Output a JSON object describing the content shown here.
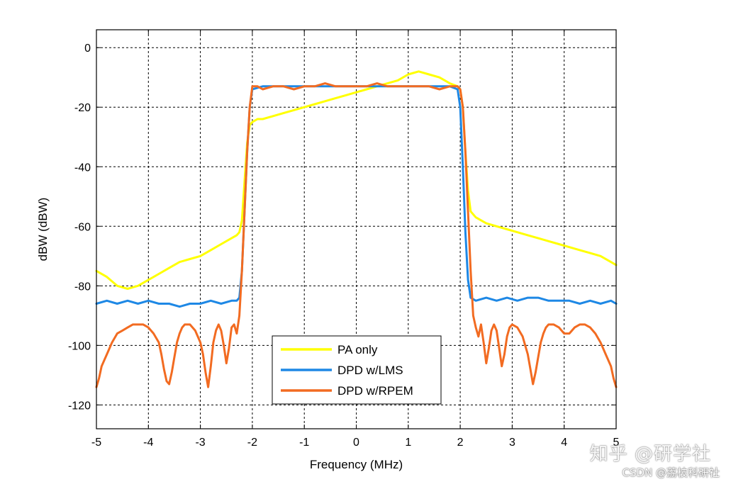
{
  "chart_data": {
    "type": "line",
    "title": "",
    "xlabel": "Frequency (MHz)",
    "ylabel": "dBW (dBW)",
    "xlim": [
      -5,
      5
    ],
    "ylim": [
      -128,
      6
    ],
    "xticks": [
      -5,
      -4,
      -3,
      -2,
      -1,
      0,
      1,
      2,
      3,
      4,
      5
    ],
    "yticks": [
      0,
      -20,
      -40,
      -60,
      -80,
      -100,
      -120
    ],
    "grid": true,
    "legend_position": "bottom-center",
    "series": [
      {
        "name": "PA only",
        "color": "#ffff00",
        "x": [
          -5,
          -4.8,
          -4.6,
          -4.4,
          -4.2,
          -4.0,
          -3.8,
          -3.6,
          -3.4,
          -3.2,
          -3.0,
          -2.8,
          -2.6,
          -2.4,
          -2.3,
          -2.25,
          -2.2,
          -2.15,
          -2.1,
          -2.05,
          -2.0,
          -1.9,
          -1.8,
          -1.6,
          -1.4,
          -1.2,
          -1.0,
          -0.8,
          -0.6,
          -0.4,
          -0.2,
          0.0,
          0.2,
          0.4,
          0.6,
          0.8,
          1.0,
          1.2,
          1.4,
          1.6,
          1.8,
          1.95,
          2.0,
          2.05,
          2.1,
          2.15,
          2.2,
          2.3,
          2.5,
          2.7,
          2.9,
          3.1,
          3.3,
          3.5,
          3.7,
          3.9,
          4.1,
          4.3,
          4.5,
          4.7,
          4.9,
          5.0
        ],
        "y": [
          -75,
          -77,
          -80,
          -81,
          -80,
          -78,
          -76,
          -74,
          -72,
          -71,
          -70,
          -68,
          -66,
          -64,
          -63,
          -62,
          -58,
          -45,
          -32,
          -26,
          -25,
          -24,
          -24,
          -23,
          -22,
          -21,
          -20,
          -19,
          -18,
          -17,
          -16,
          -15,
          -14,
          -13,
          -12,
          -11,
          -9,
          -8,
          -9,
          -10,
          -12,
          -13,
          -14,
          -20,
          -35,
          -48,
          -55,
          -57,
          -59,
          -60,
          -61,
          -62,
          -63,
          -64,
          -65,
          -66,
          -67,
          -68,
          -69,
          -70,
          -72,
          -73
        ]
      },
      {
        "name": "DPD w/LMS",
        "color": "#1e88e5",
        "x": [
          -5,
          -4.8,
          -4.6,
          -4.4,
          -4.2,
          -4.0,
          -3.8,
          -3.6,
          -3.4,
          -3.2,
          -3.0,
          -2.8,
          -2.6,
          -2.4,
          -2.3,
          -2.25,
          -2.2,
          -2.15,
          -2.1,
          -2.05,
          -2.0,
          -1.8,
          -1.5,
          -1.0,
          -0.5,
          0.0,
          0.5,
          1.0,
          1.5,
          1.8,
          1.95,
          2.0,
          2.05,
          2.1,
          2.15,
          2.2,
          2.3,
          2.5,
          2.7,
          2.9,
          3.1,
          3.3,
          3.5,
          3.7,
          3.9,
          4.1,
          4.3,
          4.5,
          4.7,
          4.9,
          5.0
        ],
        "y": [
          -86,
          -85,
          -86,
          -85,
          -86,
          -85,
          -86,
          -86,
          -87,
          -86,
          -86,
          -85,
          -86,
          -85,
          -85,
          -84,
          -75,
          -55,
          -35,
          -20,
          -14,
          -13,
          -13,
          -13,
          -13,
          -13,
          -13,
          -13,
          -13,
          -13,
          -14,
          -20,
          -40,
          -62,
          -78,
          -84,
          -85,
          -84,
          -85,
          -84,
          -85,
          -84,
          -84,
          -85,
          -85,
          -85,
          -86,
          -85,
          -86,
          -85,
          -86
        ]
      },
      {
        "name": "DPD w/RPEM",
        "color": "#f26b21",
        "x": [
          -5,
          -4.95,
          -4.9,
          -4.8,
          -4.7,
          -4.6,
          -4.5,
          -4.4,
          -4.3,
          -4.2,
          -4.1,
          -4.0,
          -3.9,
          -3.8,
          -3.75,
          -3.7,
          -3.65,
          -3.6,
          -3.55,
          -3.5,
          -3.45,
          -3.4,
          -3.35,
          -3.3,
          -3.2,
          -3.1,
          -3.0,
          -2.95,
          -2.9,
          -2.85,
          -2.8,
          -2.75,
          -2.7,
          -2.65,
          -2.6,
          -2.55,
          -2.5,
          -2.45,
          -2.4,
          -2.35,
          -2.3,
          -2.25,
          -2.2,
          -2.15,
          -2.1,
          -2.05,
          -2.0,
          -1.9,
          -1.8,
          -1.6,
          -1.4,
          -1.2,
          -1.0,
          -0.8,
          -0.6,
          -0.4,
          -0.2,
          0.0,
          0.2,
          0.4,
          0.6,
          0.8,
          1.0,
          1.2,
          1.4,
          1.6,
          1.8,
          1.95,
          2.0,
          2.05,
          2.1,
          2.15,
          2.2,
          2.25,
          2.3,
          2.35,
          2.4,
          2.45,
          2.5,
          2.55,
          2.6,
          2.65,
          2.7,
          2.75,
          2.8,
          2.85,
          2.9,
          2.95,
          3.0,
          3.1,
          3.2,
          3.3,
          3.35,
          3.4,
          3.45,
          3.5,
          3.55,
          3.6,
          3.65,
          3.7,
          3.75,
          3.8,
          3.9,
          4.0,
          4.1,
          4.2,
          4.3,
          4.4,
          4.5,
          4.6,
          4.7,
          4.8,
          4.9,
          4.95,
          5.0
        ],
        "y": [
          -114,
          -111,
          -107,
          -103,
          -99,
          -96,
          -95,
          -94,
          -93,
          -93,
          -93,
          -94,
          -96,
          -99,
          -103,
          -108,
          -112,
          -113,
          -109,
          -104,
          -99,
          -96,
          -94,
          -93,
          -93,
          -95,
          -99,
          -103,
          -109,
          -114,
          -107,
          -99,
          -95,
          -93,
          -95,
          -100,
          -106,
          -101,
          -94,
          -93,
          -96,
          -90,
          -75,
          -55,
          -35,
          -20,
          -13,
          -13,
          -14,
          -13,
          -13,
          -14,
          -13,
          -13,
          -12,
          -13,
          -13,
          -13,
          -13,
          -12,
          -13,
          -13,
          -13,
          -13,
          -13,
          -14,
          -13,
          -13,
          -14,
          -20,
          -35,
          -55,
          -75,
          -90,
          -94,
          -97,
          -93,
          -99,
          -106,
          -101,
          -95,
          -93,
          -95,
          -101,
          -107,
          -103,
          -97,
          -94,
          -93,
          -94,
          -97,
          -103,
          -108,
          -113,
          -109,
          -104,
          -99,
          -96,
          -94,
          -93,
          -93,
          -93,
          -94,
          -96,
          -96,
          -94,
          -93,
          -93,
          -94,
          -96,
          -99,
          -103,
          -107,
          -111,
          -114
        ]
      }
    ]
  },
  "watermarks": {
    "zhihu": "知乎 @研学社",
    "csdn": "CSDN @荔枝科研社"
  }
}
